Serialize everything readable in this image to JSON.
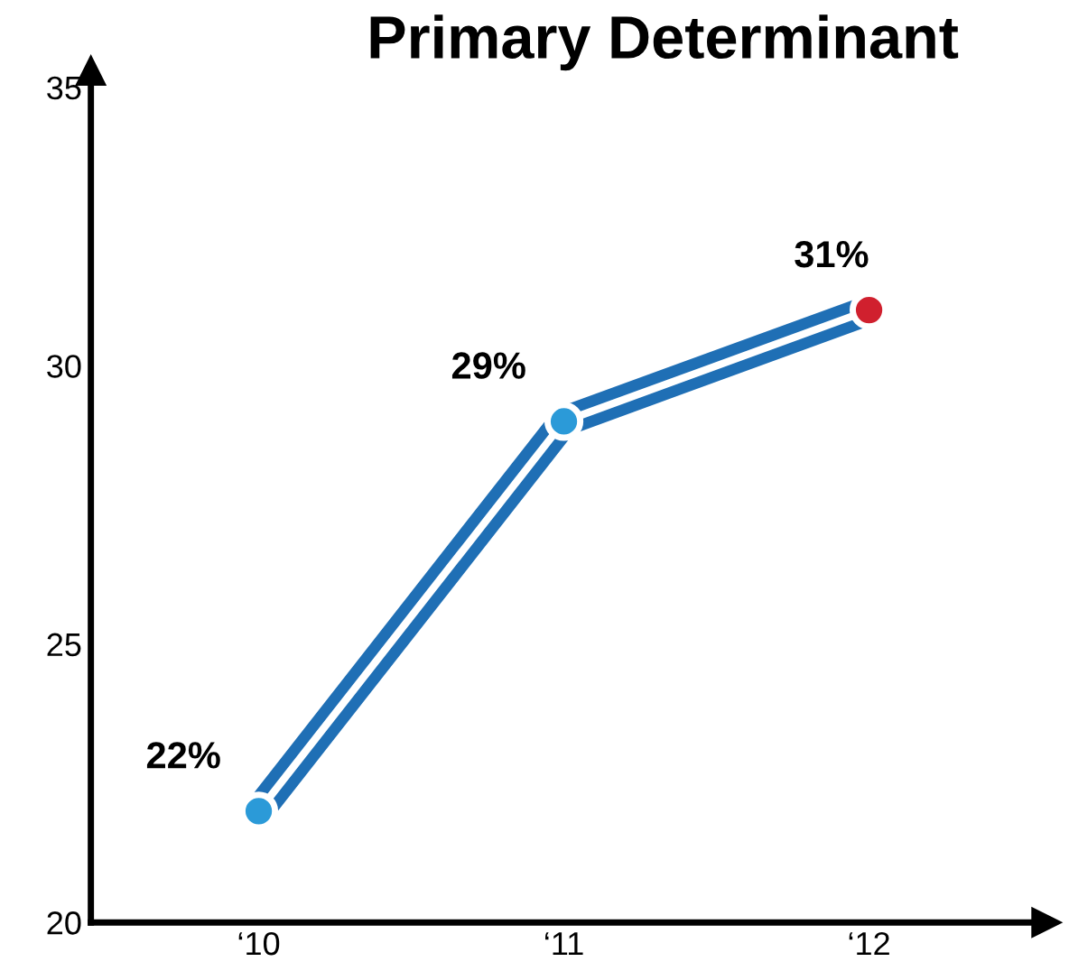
{
  "chart_data": {
    "type": "line",
    "title": "Primary Determinant",
    "categories": [
      "‘10",
      "‘11",
      "‘12"
    ],
    "series": [
      {
        "color": "#1f6fb5",
        "colors": [
          "#2b9ad8",
          "#2b9ad8",
          "#d0202e"
        ],
        "values": [
          22,
          29,
          31
        ],
        "value_labels": [
          "22%",
          "29%",
          "31%"
        ]
      }
    ],
    "ylim": [
      20,
      35
    ],
    "yticks": [
      20,
      25,
      30,
      35
    ],
    "grid": false,
    "marker": "circle",
    "line_style": "solid"
  }
}
